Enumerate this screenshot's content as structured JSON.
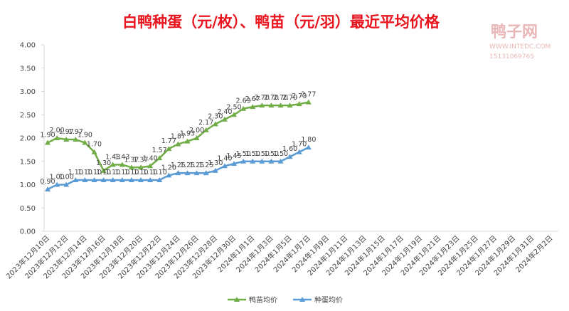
{
  "chart_data": {
    "type": "line",
    "title": "白鸭种蛋（元/枚）、鸭苗（元/羽）最近平均价格",
    "watermark": {
      "name": "鸭子网",
      "site": "WWW.INTEDC.COM",
      "phone": "15131069765"
    },
    "categories": [
      "2023年12月10日",
      null,
      "2023年12月12日",
      null,
      "2023年12月14日",
      null,
      "2023年12月16日",
      null,
      "2023年12月18日",
      null,
      "2023年12月20日",
      null,
      "2023年12月22日",
      null,
      "2023年12月24日",
      null,
      "2023年12月26日",
      null,
      "2023年12月28日",
      null,
      "2023年12月30日",
      null,
      "2024年1月1日",
      null,
      "2024年1月3日",
      null,
      "2024年1月5日",
      null,
      "2024年1月7日",
      null,
      "2024年1月9日",
      null,
      "2024年1月11日",
      null,
      "2024年1月13日",
      null,
      "2024年1月15日",
      null,
      "2024年1月17日",
      null,
      "2024年1月19日",
      null,
      "2024年1月21日",
      null,
      "2024年1月23日",
      null,
      "2024年1月25日",
      null,
      "2024年1月27日",
      null,
      "2024年1月29日",
      null,
      "2024年1月31日",
      null,
      "2024年2月2日"
    ],
    "series": [
      {
        "name": "鸭苗均价",
        "color": "#70ad47",
        "values": [
          1.9,
          2.0,
          1.97,
          1.97,
          1.9,
          1.7,
          1.3,
          1.43,
          1.43,
          1.37,
          1.37,
          1.4,
          1.57,
          1.77,
          1.87,
          1.93,
          2.0,
          2.17,
          2.3,
          2.4,
          2.5,
          2.63,
          2.67,
          2.7,
          2.7,
          2.7,
          2.7,
          2.73,
          2.77,
          null,
          null,
          null,
          null,
          null,
          null,
          null,
          null,
          null,
          null,
          null,
          null,
          null,
          null,
          null,
          null,
          null,
          null,
          null,
          null,
          null,
          null,
          null,
          null,
          null,
          null
        ],
        "value_labels": [
          "1.90",
          "2.00",
          "1.97",
          "1.97",
          "1.90",
          "1.70",
          "1.30",
          "1.43",
          "1.43",
          "1.37",
          "1.37",
          "1.40",
          "1.57",
          "1.77",
          "1.87",
          "1.93",
          "2.00",
          "2.17",
          "2.30",
          "2.40",
          "2.50",
          "2.63",
          "2.67",
          "2.70",
          "2.70",
          "2.70",
          "2.70",
          "2.73",
          "2.77",
          null,
          null,
          null,
          null,
          null,
          null,
          null,
          null,
          null,
          null,
          null,
          null,
          null,
          null,
          null,
          null,
          null,
          null,
          null,
          null,
          null,
          null,
          null,
          null,
          null,
          null
        ]
      },
      {
        "name": "种蛋均价",
        "color": "#5b9bd5",
        "values": [
          0.9,
          1.0,
          1.0,
          1.1,
          1.1,
          1.1,
          1.1,
          1.1,
          1.1,
          1.1,
          1.1,
          1.1,
          1.1,
          1.2,
          1.25,
          1.25,
          1.25,
          1.25,
          1.3,
          1.4,
          1.45,
          1.5,
          1.5,
          1.5,
          1.5,
          1.5,
          1.6,
          1.7,
          1.8,
          null,
          null,
          null,
          null,
          null,
          null,
          null,
          null,
          null,
          null,
          null,
          null,
          null,
          null,
          null,
          null,
          null,
          null,
          null,
          null,
          null,
          null,
          null,
          null,
          null,
          null
        ],
        "value_labels": [
          "0.90",
          "1.00",
          "1.00",
          "1.10",
          "1.10",
          "1.10",
          "1.10",
          "1.10",
          "1.10",
          "1.10",
          "1.10",
          "1.10",
          "1.10",
          "1.20",
          "1.25",
          "1.25",
          "1.25",
          "1.25",
          "1.30",
          "1.40",
          "1.45",
          "1.50",
          "1.50",
          "1.50",
          "1.50",
          "1.50",
          "1.60",
          "1.70",
          "1.80",
          null,
          null,
          null,
          null,
          null,
          null,
          null,
          null,
          null,
          null,
          null,
          null,
          null,
          null,
          null,
          null,
          null,
          null,
          null,
          null,
          null,
          null,
          null,
          null,
          null,
          null
        ]
      }
    ],
    "ylim": [
      0,
      4
    ],
    "yticks": [
      {
        "value": 0,
        "label": "0.00"
      },
      {
        "value": 0.5,
        "label": "0.50"
      },
      {
        "value": 1,
        "label": "1.00"
      },
      {
        "value": 1.5,
        "label": "1.50"
      },
      {
        "value": 2,
        "label": "2.00"
      },
      {
        "value": 2.5,
        "label": "2.50"
      },
      {
        "value": 3,
        "label": "3.00"
      },
      {
        "value": 3.5,
        "label": "3.50"
      },
      {
        "value": 4,
        "label": "4.00"
      }
    ],
    "grid": false,
    "legend": "bottom"
  }
}
